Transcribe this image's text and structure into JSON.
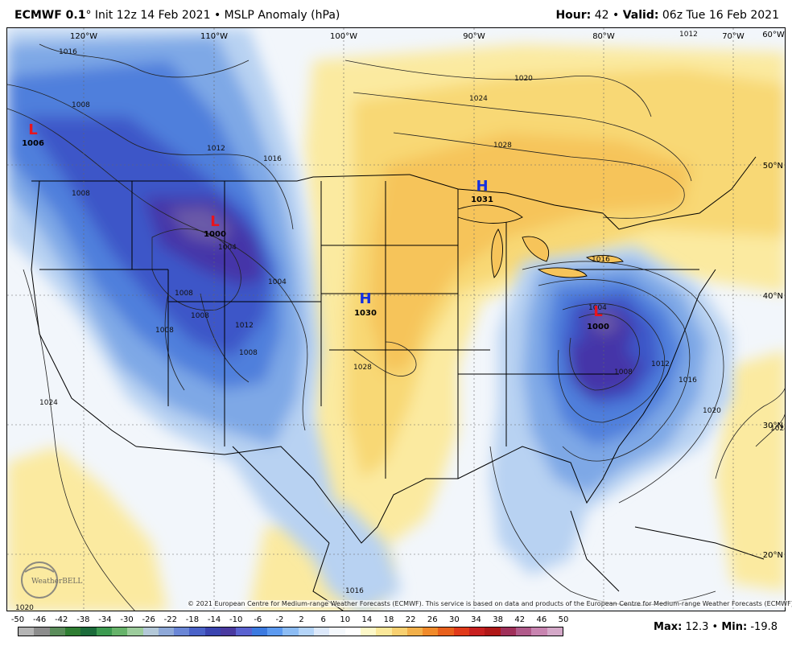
{
  "header": {
    "model": "ECMWF 0.1",
    "model_degree": "°",
    "init": "Init 12z 14 Feb 2021",
    "bullet": "•",
    "field": "MSLP Anomaly (hPa)",
    "hour_label": "Hour:",
    "hour_value": "42",
    "valid_label": "Valid:",
    "valid_value": "06z Tue 16 Feb 2021"
  },
  "map": {
    "lon_labels": [
      "120°W",
      "110°W",
      "100°W",
      "90°W",
      "80°W",
      "70°W",
      "60°W"
    ],
    "lat_labels": [
      "50°N",
      "40°N",
      "30°N",
      "20°N"
    ],
    "pressure_centers": [
      {
        "type": "L",
        "value": "1006",
        "color": "#e8141e"
      },
      {
        "type": "L",
        "value": "1000",
        "color": "#e8141e"
      },
      {
        "type": "H",
        "value": "1031",
        "color": "#1430e0"
      },
      {
        "type": "H",
        "value": "1030",
        "color": "#1430e0"
      },
      {
        "type": "L",
        "value": "1000",
        "color": "#e8141e"
      }
    ],
    "isobar_labels": [
      "1016",
      "1008",
      "1012",
      "1016",
      "1008",
      "1004",
      "1008",
      "1008",
      "1008",
      "1004",
      "1008",
      "1012",
      "1020",
      "1024",
      "1028",
      "1016",
      "1004",
      "1008",
      "1012",
      "1016",
      "1020",
      "1024",
      "1028",
      "1024",
      "1016",
      "1020",
      "1012"
    ],
    "logo": "WeatherBELL",
    "copyright": "© 2021 European Centre for Medium-range Weather Forecasts (ECMWF). This service is based on data and products of the European Centre for Medium-range Weather Forecasts (ECMWF)."
  },
  "colorbar": {
    "ticks": [
      "-50",
      "-46",
      "-42",
      "-38",
      "-34",
      "-30",
      "-26",
      "-22",
      "-18",
      "-14",
      "-10",
      "-6",
      "-2",
      "2",
      "6",
      "10",
      "14",
      "18",
      "22",
      "26",
      "30",
      "34",
      "38",
      "42",
      "46",
      "50"
    ],
    "colors": [
      "#b4b4b4",
      "#8c8c8c",
      "#5a8c5a",
      "#2e7d32",
      "#1b6b3a",
      "#3c9a50",
      "#66b36a",
      "#9ccc9c",
      "#b3c8d8",
      "#8ea8d8",
      "#6a86d6",
      "#4a62c8",
      "#3a44b0",
      "#4a3aa0",
      "#5a62d0",
      "#3c7ae0",
      "#5c9af0",
      "#8cbcf4",
      "#b4d4f8",
      "#dce8fa",
      "#f4f8fc",
      "#fefefe",
      "#fdf8c8",
      "#fbe89a",
      "#f8d070",
      "#f2b04a",
      "#f08a2a",
      "#e8601c",
      "#e03a1a",
      "#c82020",
      "#b01818",
      "#a0305a",
      "#b05a8a",
      "#c884b0",
      "#d4a8c8"
    ],
    "max_label": "Max:",
    "max_value": "12.3",
    "min_label": "Min:",
    "min_value": "-19.8"
  }
}
